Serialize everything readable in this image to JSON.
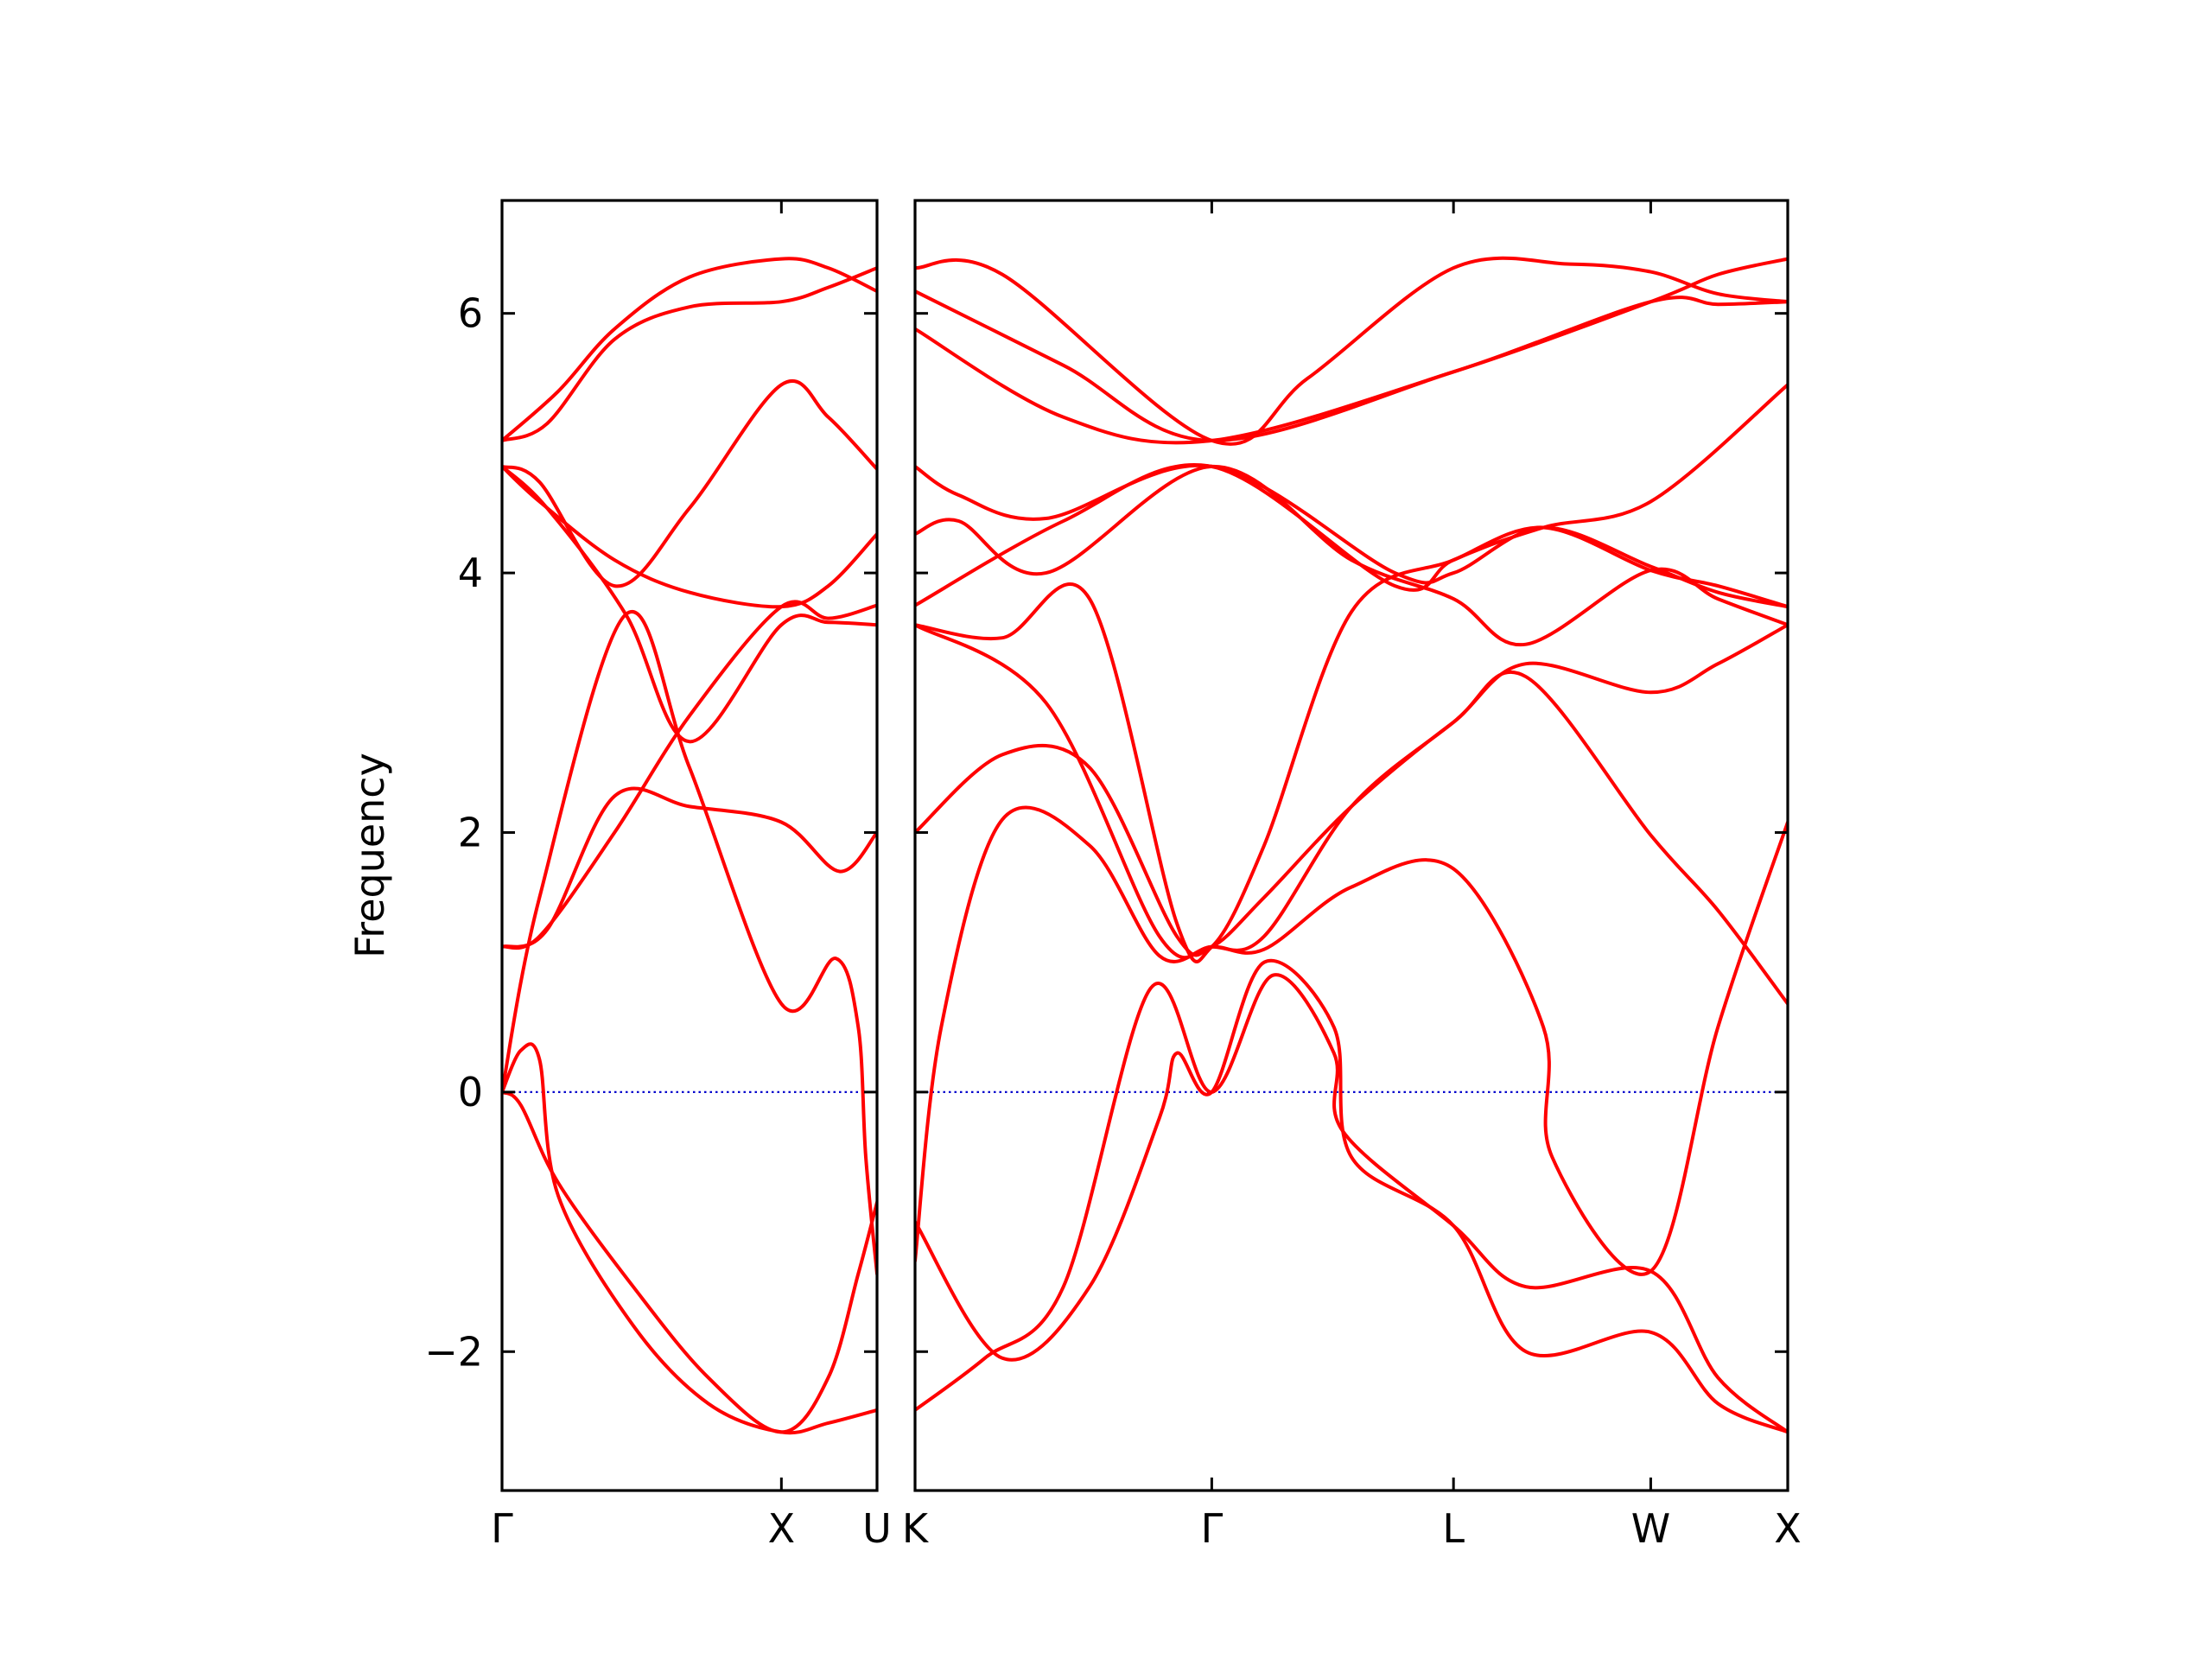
{
  "chart_data": {
    "type": "line",
    "ylabel": "Frequency",
    "ylim": [
      -3.07,
      6.87
    ],
    "yticks": [
      -2,
      0,
      2,
      4,
      6
    ],
    "ytick_labels": [
      "−2",
      "0",
      "2",
      "4",
      "6"
    ],
    "grid": false,
    "zero_line": {
      "y": 0,
      "color": "#0000cc",
      "style": "dotted"
    },
    "series_color": "#ff0000",
    "panels": [
      {
        "xlim": [
          0,
          1
        ],
        "ticks": [
          {
            "x": 0,
            "label": "Γ"
          },
          {
            "x": 0.745,
            "label": "X"
          },
          {
            "x": 1,
            "label": "U"
          }
        ],
        "bands": [
          [
            [
              0,
              5.02
            ],
            [
              0.15,
              5.4
            ],
            [
              0.3,
              5.88
            ],
            [
              0.5,
              6.28
            ],
            [
              0.745,
              6.42
            ],
            [
              0.87,
              6.35
            ],
            [
              1,
              6.17
            ]
          ],
          [
            [
              0,
              5.02
            ],
            [
              0.12,
              5.15
            ],
            [
              0.3,
              5.8
            ],
            [
              0.5,
              6.05
            ],
            [
              0.745,
              6.09
            ],
            [
              0.87,
              6.2
            ],
            [
              1,
              6.35
            ]
          ],
          [
            [
              0,
              4.82
            ],
            [
              0.1,
              4.55
            ],
            [
              0.3,
              4.1
            ],
            [
              0.5,
              3.85
            ],
            [
              0.745,
              3.74
            ],
            [
              0.87,
              3.9
            ],
            [
              1,
              4.3
            ]
          ],
          [
            [
              0,
              4.82
            ],
            [
              0.1,
              4.7
            ],
            [
              0.3,
              3.9
            ],
            [
              0.5,
              4.5
            ],
            [
              0.745,
              5.45
            ],
            [
              0.87,
              5.2
            ],
            [
              1,
              4.8
            ]
          ],
          [
            [
              0,
              4.82
            ],
            [
              0.12,
              4.5
            ],
            [
              0.33,
              3.68
            ],
            [
              0.5,
              2.7
            ],
            [
              0.745,
              3.6
            ],
            [
              0.87,
              3.62
            ],
            [
              1,
              3.6
            ]
          ],
          [
            [
              0,
              1.12
            ],
            [
              0.1,
              1.2
            ],
            [
              0.3,
              2.0
            ],
            [
              0.5,
              2.9
            ],
            [
              0.745,
              3.74
            ],
            [
              0.87,
              3.65
            ],
            [
              1,
              3.75
            ]
          ],
          [
            [
              0,
              1.12
            ],
            [
              0.12,
              1.25
            ],
            [
              0.3,
              2.28
            ],
            [
              0.5,
              2.2
            ],
            [
              0.745,
              2.08
            ],
            [
              0.9,
              1.7
            ],
            [
              1,
              2.0
            ]
          ],
          [
            [
              0,
              0
            ],
            [
              0.1,
              1.5
            ],
            [
              0.33,
              3.68
            ],
            [
              0.5,
              2.5
            ],
            [
              0.745,
              0.68
            ],
            [
              0.89,
              1.03
            ],
            [
              0.95,
              0.5
            ],
            [
              0.97,
              -0.5
            ],
            [
              1,
              -1.4
            ]
          ],
          [
            [
              0,
              0
            ],
            [
              0.05,
              0.32
            ],
            [
              0.1,
              0.25
            ],
            [
              0.15,
              -0.8
            ],
            [
              0.35,
              -1.8
            ],
            [
              0.55,
              -2.4
            ],
            [
              0.745,
              -2.62
            ],
            [
              0.87,
              -2.55
            ],
            [
              1,
              -2.45
            ]
          ],
          [
            [
              0,
              0
            ],
            [
              0.05,
              -0.1
            ],
            [
              0.15,
              -0.7
            ],
            [
              0.35,
              -1.5
            ],
            [
              0.55,
              -2.2
            ],
            [
              0.745,
              -2.62
            ],
            [
              0.87,
              -2.2
            ],
            [
              0.95,
              -1.4
            ],
            [
              1,
              -0.85
            ]
          ]
        ]
      },
      {
        "xlim": [
          0,
          1
        ],
        "ticks": [
          {
            "x": 0,
            "label": "K"
          },
          {
            "x": 0.34,
            "label": "Γ"
          },
          {
            "x": 0.617,
            "label": "L"
          },
          {
            "x": 0.843,
            "label": "W"
          },
          {
            "x": 1,
            "label": "X"
          }
        ],
        "bands": [
          [
            [
              0,
              6.35
            ],
            [
              0.1,
              6.3
            ],
            [
              0.34,
              5.02
            ],
            [
              0.45,
              5.5
            ],
            [
              0.617,
              6.35
            ],
            [
              0.75,
              6.38
            ],
            [
              0.843,
              6.32
            ],
            [
              0.92,
              6.15
            ],
            [
              1,
              6.09
            ]
          ],
          [
            [
              0,
              6.17
            ],
            [
              0.17,
              5.6
            ],
            [
              0.34,
              5.02
            ],
            [
              0.617,
              5.55
            ],
            [
              0.843,
              6.09
            ],
            [
              0.92,
              6.3
            ],
            [
              1,
              6.42
            ]
          ],
          [
            [
              0,
              5.88
            ],
            [
              0.17,
              5.2
            ],
            [
              0.34,
              5.02
            ],
            [
              0.617,
              5.55
            ],
            [
              0.843,
              6.09
            ],
            [
              0.92,
              6.07
            ],
            [
              1,
              6.09
            ]
          ],
          [
            [
              0,
              4.82
            ],
            [
              0.05,
              4.6
            ],
            [
              0.15,
              4.42
            ],
            [
              0.34,
              4.82
            ],
            [
              0.55,
              4.0
            ],
            [
              0.617,
              4.0
            ],
            [
              0.72,
              4.35
            ],
            [
              0.843,
              4.05
            ],
            [
              0.92,
              3.85
            ],
            [
              1,
              3.74
            ]
          ],
          [
            [
              0,
              4.3
            ],
            [
              0.05,
              4.4
            ],
            [
              0.15,
              4.0
            ],
            [
              0.34,
              4.82
            ],
            [
              0.5,
              4.1
            ],
            [
              0.617,
              3.8
            ],
            [
              0.7,
              3.45
            ],
            [
              0.843,
              4.02
            ],
            [
              0.92,
              3.8
            ],
            [
              1,
              3.6
            ]
          ],
          [
            [
              0,
              3.75
            ],
            [
              0.17,
              4.4
            ],
            [
              0.34,
              4.82
            ],
            [
              0.55,
              3.9
            ],
            [
              0.617,
              4.1
            ],
            [
              0.72,
              4.35
            ],
            [
              0.843,
              4.02
            ],
            [
              0.92,
              3.9
            ],
            [
              1,
              3.74
            ]
          ],
          [
            [
              0,
              3.6
            ],
            [
              0.1,
              3.5
            ],
            [
              0.2,
              3.8
            ],
            [
              0.3,
              1.3
            ],
            [
              0.34,
              1.12
            ],
            [
              0.4,
              1.9
            ],
            [
              0.5,
              3.7
            ],
            [
              0.617,
              4.1
            ],
            [
              0.72,
              4.35
            ],
            [
              0.843,
              4.55
            ],
            [
              1,
              5.45
            ]
          ],
          [
            [
              0,
              3.6
            ],
            [
              0.15,
              3.0
            ],
            [
              0.28,
              1.2
            ],
            [
              0.34,
              1.12
            ],
            [
              0.4,
              1.2
            ],
            [
              0.5,
              2.2
            ],
            [
              0.617,
              2.85
            ],
            [
              0.7,
              3.3
            ],
            [
              0.843,
              3.08
            ],
            [
              0.92,
              3.3
            ],
            [
              1,
              3.6
            ]
          ],
          [
            [
              0,
              2.0
            ],
            [
              0.1,
              2.6
            ],
            [
              0.2,
              2.5
            ],
            [
              0.3,
              1.2
            ],
            [
              0.34,
              1.12
            ],
            [
              0.4,
              1.5
            ],
            [
              0.5,
              2.2
            ],
            [
              0.617,
              2.85
            ],
            [
              0.7,
              3.2
            ],
            [
              0.843,
              1.98
            ],
            [
              0.92,
              1.4
            ],
            [
              1,
              0.68
            ]
          ],
          [
            [
              0,
              -1.3
            ],
            [
              0.03,
              0.5
            ],
            [
              0.1,
              2.1
            ],
            [
              0.2,
              1.9
            ],
            [
              0.28,
              1.05
            ],
            [
              0.34,
              1.12
            ],
            [
              0.4,
              1.1
            ],
            [
              0.5,
              1.58
            ],
            [
              0.617,
              1.72
            ],
            [
              0.72,
              0.5
            ],
            [
              0.73,
              -0.5
            ],
            [
              0.843,
              -1.38
            ],
            [
              0.92,
              0.5
            ],
            [
              1,
              2.08
            ]
          ],
          [
            [
              0,
              -2.45
            ],
            [
              0.08,
              -2.05
            ],
            [
              0.17,
              -1.5
            ],
            [
              0.27,
              0.8
            ],
            [
              0.34,
              0
            ],
            [
              0.41,
              0.9
            ],
            [
              0.48,
              0.3
            ],
            [
              0.49,
              -0.3
            ],
            [
              0.617,
              -1.03
            ],
            [
              0.7,
              -1.5
            ],
            [
              0.843,
              -1.38
            ],
            [
              0.92,
              -2.2
            ],
            [
              1,
              -2.62
            ]
          ],
          [
            [
              0,
              -1.0
            ],
            [
              0.1,
              -2.05
            ],
            [
              0.2,
              -1.5
            ],
            [
              0.28,
              -0.2
            ],
            [
              0.3,
              0.3
            ],
            [
              0.34,
              0
            ],
            [
              0.4,
              1.0
            ],
            [
              0.48,
              0.5
            ],
            [
              0.5,
              -0.5
            ],
            [
              0.617,
              -1.03
            ],
            [
              0.7,
              -2.0
            ],
            [
              0.843,
              -1.85
            ],
            [
              0.92,
              -2.4
            ],
            [
              1,
              -2.62
            ]
          ]
        ]
      }
    ]
  }
}
